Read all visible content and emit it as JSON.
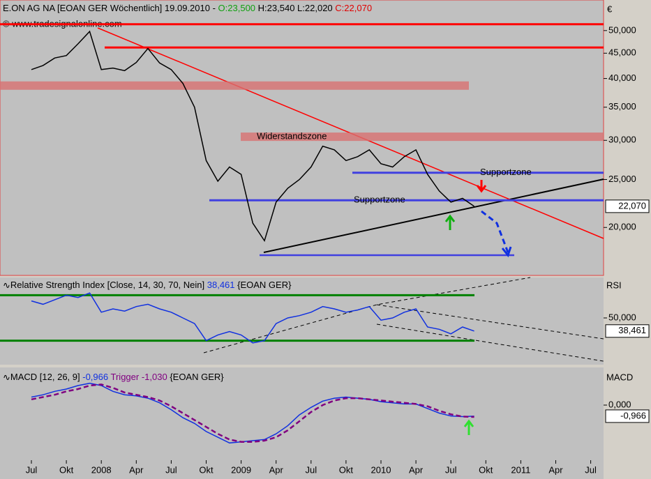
{
  "chart_data": [
    {
      "type": "line",
      "title": "E.ON AG NA [EOAN GER  Wöchentlich] 19.09.2010 -",
      "open": "O:23,500",
      "high_low": "H:23,540 L:22,020",
      "close": "C:22,070",
      "source": "© www.tradesignalonline.com",
      "unit": "€",
      "categories": [
        "Jul",
        null,
        null,
        "Okt",
        null,
        null,
        "2008",
        null,
        null,
        "Apr",
        null,
        null,
        "Jul",
        null,
        null,
        "Okt",
        null,
        null,
        "2009",
        null,
        null,
        "Apr",
        null,
        null,
        "Jul",
        null,
        null,
        "Okt",
        null,
        null,
        "2010",
        null,
        null,
        "Apr",
        null,
        null,
        "Jul",
        null,
        null,
        "Okt",
        null,
        null,
        "2011",
        null,
        null,
        "Apr",
        null,
        null,
        "Jul",
        null
      ],
      "series": [
        {
          "color": "#000000",
          "values": [
            41700,
            42500,
            44000,
            44500,
            47000,
            49800,
            41700,
            42000,
            41500,
            43100,
            46000,
            43000,
            41700,
            39100,
            35000,
            27300,
            24800,
            26500,
            25600,
            20400,
            18800,
            22500,
            24000,
            25000,
            26500,
            29200,
            28700,
            27300,
            27800,
            28700,
            26900,
            26500,
            27800,
            28700,
            25600,
            23700,
            22500,
            22900,
            22070,
            null,
            null,
            null,
            null,
            null,
            null,
            null,
            null,
            null,
            null,
            null
          ]
        }
      ],
      "log_scale": true,
      "ylim": [
        16000,
        55800
      ],
      "yticks": [
        {
          "value": 20000,
          "label": "20,000"
        },
        {
          "value": 25000,
          "label": "25,000"
        },
        {
          "value": 30000,
          "label": "30,000"
        },
        {
          "value": 35000,
          "label": "35,000"
        },
        {
          "value": 40000,
          "label": "40,000"
        },
        {
          "value": 45000,
          "label": "45,000"
        },
        {
          "value": 50000,
          "label": "50,000"
        }
      ],
      "last": {
        "value": 22070,
        "label": "22,070"
      },
      "levels": [
        {
          "value": 51500,
          "color": "#ff0000"
        },
        {
          "value": 46200,
          "color": "#ff0000"
        },
        {
          "value": 38700,
          "color": "#d87070"
        },
        {
          "value": 30500,
          "color": "#d87070",
          "label": "Widerstandszone"
        },
        {
          "value": 25800,
          "color": "#4040e0",
          "label": "Supportzone"
        },
        {
          "value": 22700,
          "color": "#4040e0",
          "label": "Supportzone"
        }
      ]
    },
    {
      "type": "line",
      "title": "Relative Strength Index [Close, 14, 30, 70, Nein]",
      "value_text": "38,461",
      "symbol": "{EOAN GER}",
      "axis_title": "RSI",
      "series": [
        {
          "color": "#1030e0",
          "values": [
            65,
            62,
            66,
            70,
            68,
            72,
            55,
            58,
            56,
            60,
            62,
            58,
            55,
            50,
            45,
            30,
            35,
            38,
            35,
            28,
            30,
            45,
            50,
            52,
            55,
            60,
            58,
            55,
            57,
            60,
            48,
            50,
            55,
            58,
            42,
            40,
            36,
            42,
            38.461,
            null,
            null,
            null,
            null,
            null,
            null,
            null,
            null,
            null,
            null,
            null
          ]
        }
      ],
      "ylim": [
        10.7,
        85.6
      ],
      "yticks": [
        {
          "value": 50,
          "label": "50,000"
        }
      ],
      "last": {
        "value": 38.461,
        "label": "38,461"
      },
      "levels": [
        {
          "value": 70,
          "color": "#008000"
        },
        {
          "value": 30,
          "color": "#008000"
        }
      ]
    },
    {
      "type": "line",
      "title": "MACD [12, 26, 9]",
      "value_text": "-0,966",
      "trigger_text": "Trigger -1,030",
      "symbol": "{EOAN GER}",
      "axis_title": "MACD",
      "series": [
        {
          "name": "MACD",
          "color": "#1030e0",
          "values": [
            0.7,
            0.9,
            1.2,
            1.4,
            1.7,
            1.9,
            1.7,
            1.2,
            0.9,
            0.8,
            0.6,
            0.2,
            -0.4,
            -1.1,
            -1.6,
            -2.3,
            -2.8,
            -3.3,
            -3.2,
            -3.1,
            -3.0,
            -2.5,
            -1.8,
            -0.85,
            -0.2,
            0.35,
            0.6,
            0.7,
            0.6,
            0.5,
            0.3,
            0.2,
            0.1,
            0.1,
            -0.3,
            -0.7,
            -0.95,
            -1.0,
            -0.966,
            null,
            null,
            null,
            null,
            null,
            null,
            null,
            null,
            null,
            null,
            null
          ]
        },
        {
          "name": "Trigger",
          "color": "#800080",
          "values": [
            0.5,
            0.7,
            0.9,
            1.2,
            1.4,
            1.7,
            1.8,
            1.5,
            1.1,
            0.9,
            0.7,
            0.4,
            -0.1,
            -0.7,
            -1.3,
            -1.9,
            -2.5,
            -3.0,
            -3.2,
            -3.2,
            -3.1,
            -2.8,
            -2.2,
            -1.4,
            -0.6,
            0.0,
            0.4,
            0.6,
            0.6,
            0.5,
            0.4,
            0.3,
            0.2,
            0.1,
            -0.1,
            -0.5,
            -0.8,
            -1.0,
            -1.03,
            null,
            null,
            null,
            null,
            null,
            null,
            null,
            null,
            null,
            null,
            null
          ]
        }
      ],
      "ylim": [
        -4.8,
        3.1
      ],
      "yticks": [
        {
          "value": 0,
          "label": "0,000"
        }
      ],
      "last": {
        "value": -0.966,
        "label": "-0,966"
      }
    }
  ]
}
